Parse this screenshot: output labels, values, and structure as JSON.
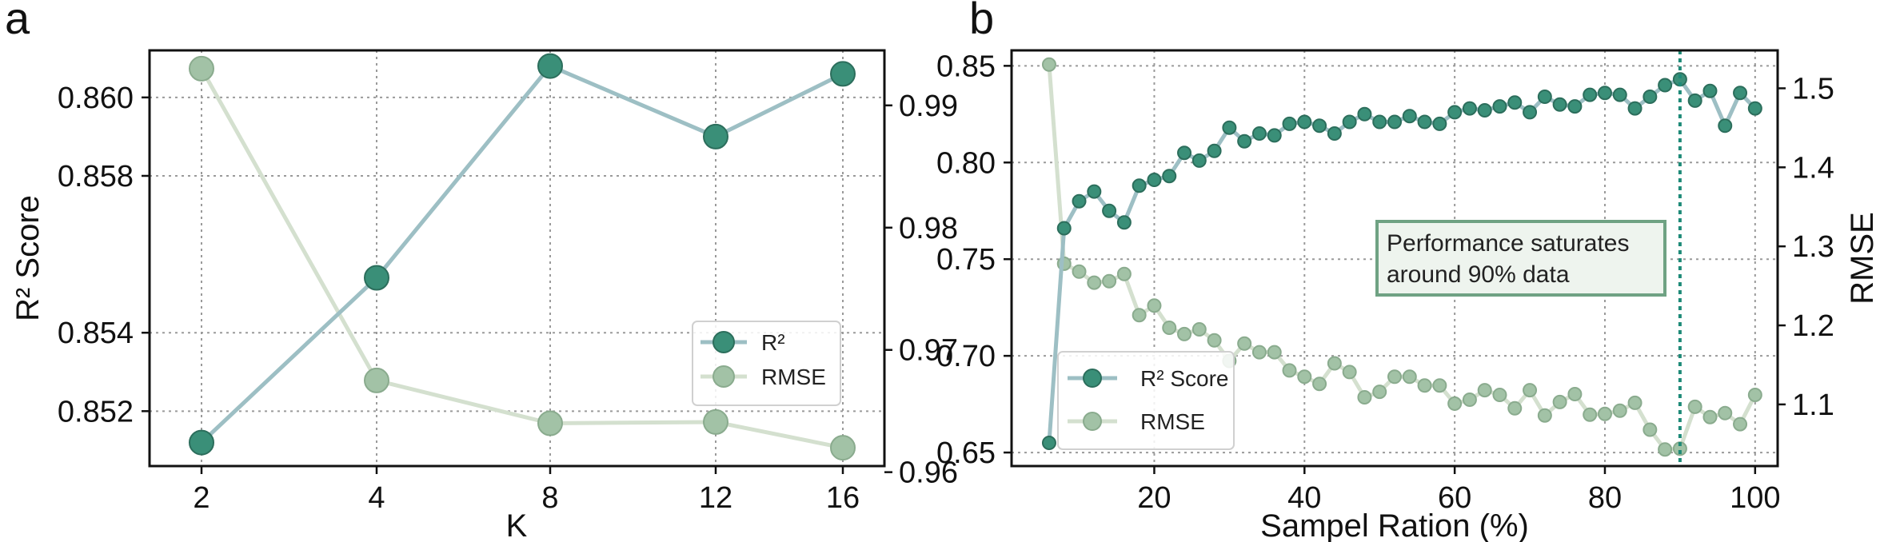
{
  "chart_data": [
    {
      "type": "line",
      "panel_label": "a",
      "categories": [
        "2",
        "4",
        "8",
        "12",
        "16"
      ],
      "xlabel": "K",
      "ylabel": "R² Score",
      "y2label": "",
      "ylim": [
        0.8506,
        0.8612
      ],
      "y2lim": [
        0.9605,
        0.9945
      ],
      "yticks": [
        "0.852",
        "0.854",
        "0.858",
        "0.860"
      ],
      "y2ticks": [
        "0.96",
        "0.97",
        "0.98",
        "0.99"
      ],
      "grid": true,
      "legend_position": "lower-right",
      "series": [
        {
          "name": "R²",
          "axis": "left",
          "values": [
            0.8512,
            0.8554,
            0.8608,
            0.859,
            0.8606
          ],
          "line_color": "#9dbfc4",
          "marker_color": "#3a8f78"
        },
        {
          "name": "RMSE",
          "axis": "right",
          "values": [
            0.993,
            0.9675,
            0.964,
            0.9641,
            0.962
          ],
          "line_color": "#d4e0cf",
          "marker_color": "#a2c2a6"
        }
      ]
    },
    {
      "type": "line",
      "panel_label": "b",
      "xlabel": "Sampel Ration (%)",
      "ylabel": "",
      "y2label": "RMSE",
      "xlim": [
        1,
        103
      ],
      "ylim": [
        0.643,
        0.858
      ],
      "y2lim": [
        1.022,
        1.548
      ],
      "xticks": [
        "20",
        "40",
        "60",
        "80",
        "100"
      ],
      "yticks": [
        "0.65",
        "0.70",
        "0.75",
        "0.80",
        "0.85"
      ],
      "y2ticks": [
        "1.1",
        "1.2",
        "1.3",
        "1.4",
        "1.5"
      ],
      "grid": true,
      "legend_position": "lower-left",
      "annotation": {
        "line1": "Performance saturates",
        "line2": "around 90% data"
      },
      "vline_x": 90,
      "x": [
        6,
        8,
        10,
        12,
        14,
        16,
        18,
        20,
        22,
        24,
        26,
        28,
        30,
        32,
        34,
        36,
        38,
        40,
        42,
        44,
        46,
        48,
        50,
        52,
        54,
        56,
        58,
        60,
        62,
        64,
        66,
        68,
        70,
        72,
        74,
        76,
        78,
        80,
        82,
        84,
        86,
        88,
        90,
        92,
        94,
        96,
        98,
        100
      ],
      "series": [
        {
          "name": "R² Score",
          "axis": "left",
          "values": [
            0.655,
            0.766,
            0.78,
            0.785,
            0.775,
            0.769,
            0.788,
            0.791,
            0.793,
            0.805,
            0.801,
            0.806,
            0.818,
            0.811,
            0.815,
            0.814,
            0.82,
            0.821,
            0.819,
            0.815,
            0.821,
            0.825,
            0.821,
            0.821,
            0.824,
            0.821,
            0.82,
            0.826,
            0.828,
            0.827,
            0.829,
            0.831,
            0.826,
            0.834,
            0.83,
            0.829,
            0.835,
            0.836,
            0.835,
            0.828,
            0.834,
            0.84,
            0.843,
            0.832,
            0.837,
            0.819,
            0.836,
            0.828
          ],
          "line_color": "#9dbfc4",
          "marker_color": "#3a8f78"
        },
        {
          "name": "RMSE",
          "axis": "right",
          "values": [
            1.53,
            1.278,
            1.268,
            1.254,
            1.256,
            1.265,
            1.213,
            1.225,
            1.197,
            1.189,
            1.195,
            1.181,
            1.155,
            1.177,
            1.166,
            1.166,
            1.143,
            1.135,
            1.126,
            1.152,
            1.141,
            1.109,
            1.116,
            1.135,
            1.135,
            1.124,
            1.124,
            1.101,
            1.106,
            1.118,
            1.112,
            1.095,
            1.118,
            1.086,
            1.103,
            1.113,
            1.087,
            1.088,
            1.092,
            1.102,
            1.068,
            1.043,
            1.044,
            1.097,
            1.084,
            1.089,
            1.075,
            1.112
          ],
          "line_color": "#d4e0cf",
          "marker_color": "#a2c2a6"
        }
      ]
    }
  ]
}
